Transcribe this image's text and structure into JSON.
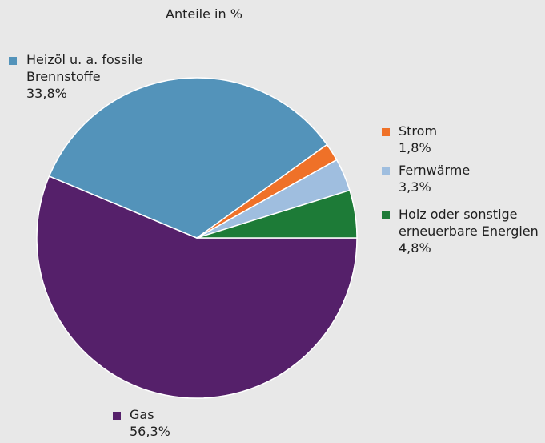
{
  "chart_data": {
    "type": "pie",
    "subtitle": "Anteile in %",
    "unit": "%",
    "slices": [
      {
        "key": "gas",
        "label": "Gas",
        "value": 56.3,
        "value_label": "56,3%",
        "color": "#55206a"
      },
      {
        "key": "oil",
        "label": "Heizöl u. a. fossile Brennstoffe",
        "label_lines": [
          "Heizöl u. a. fossile",
          "Brennstoffe"
        ],
        "value": 33.8,
        "value_label": "33,8%",
        "color": "#5393ba"
      },
      {
        "key": "strom",
        "label": "Strom",
        "value": 1.8,
        "value_label": "1,8%",
        "color": "#ef7128"
      },
      {
        "key": "fern",
        "label": "Fernwärme",
        "value": 3.3,
        "value_label": "3,3%",
        "color": "#9fbedf"
      },
      {
        "key": "holz",
        "label": "Holz oder sonstige erneuerbare Energien",
        "label_lines": [
          "Holz oder sonstige",
          "erneuerbare Energien"
        ],
        "value": 4.8,
        "value_label": "4,8%",
        "color": "#1d7b37"
      }
    ]
  }
}
